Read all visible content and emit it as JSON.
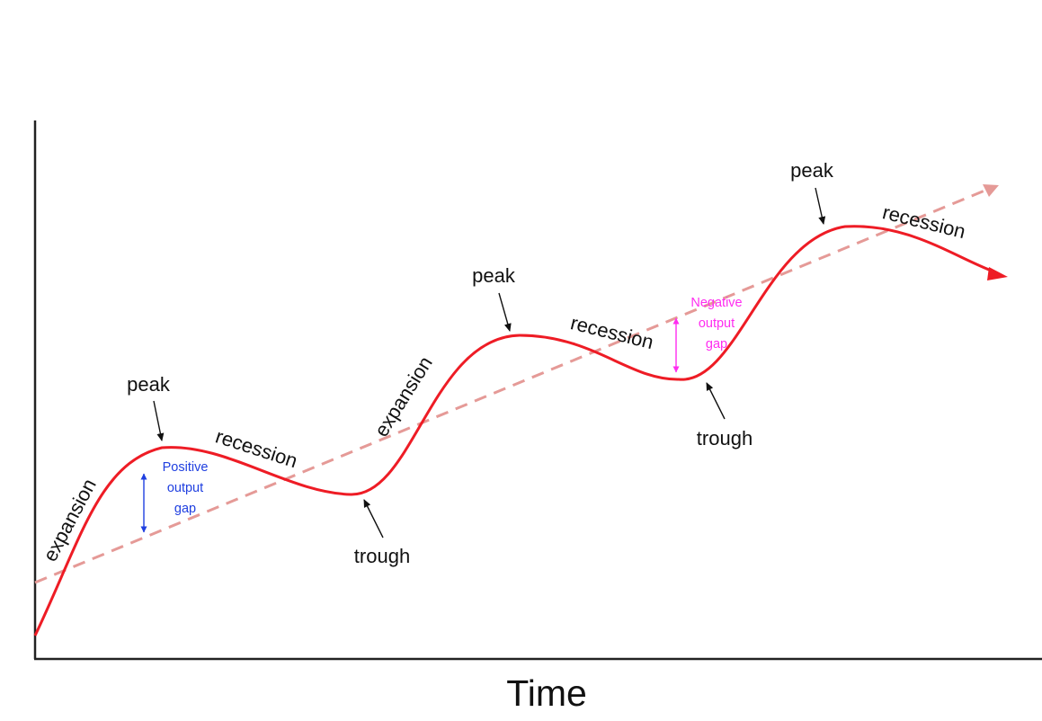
{
  "axis": {
    "x_title": "Time"
  },
  "phases": {
    "expansion_1": "expansion",
    "expansion_2": "expansion",
    "recession_1": "recession",
    "recession_2": "recession",
    "recession_3": "recession"
  },
  "turning_points": {
    "peak_1": "peak",
    "peak_2": "peak",
    "peak_3": "peak",
    "trough_1": "trough",
    "trough_2": "trough"
  },
  "output_gaps": {
    "positive": {
      "line1": "Positive",
      "line2": "output",
      "line3": "gap",
      "color": "#1f3fe0"
    },
    "negative": {
      "line1": "Negative",
      "line2": "output",
      "line3": "gap",
      "color": "#ff2cf0"
    }
  },
  "colors": {
    "actual_output": "#ee1c25",
    "trend": "#e59a97",
    "axis": "#222222",
    "text": "#111111"
  }
}
